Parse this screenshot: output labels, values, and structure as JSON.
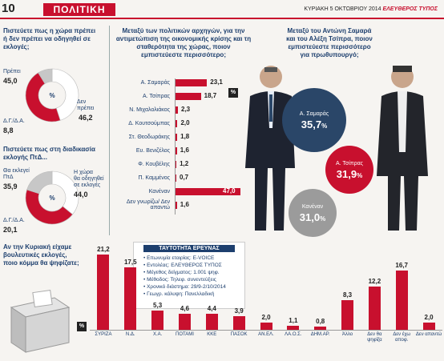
{
  "header": {
    "page_number": "10",
    "section": "ΠΟΛΙΤΙΚΗ",
    "date": "ΚΥΡΙΑΚΗ 5 ΟΚΤΩΒΡΙΟΥ 2014",
    "paper": "ΕΛΕΥΘΕΡΟΣ ΤΥΠΟΣ"
  },
  "chart_data": [
    {
      "type": "pie",
      "title": "Πιστεύετε πως η χώρα πρέπει ή δεν πρέπει να οδηγηθεί σε εκλογές;",
      "center_label": "%",
      "slices": [
        {
          "label": "Πρέπει",
          "value": 45.0,
          "value_text": "45,0",
          "color": "#ffffff"
        },
        {
          "label": "Δεν πρέπει",
          "value": 46.2,
          "value_text": "46,2",
          "color": "#c8102e"
        },
        {
          "label": "Δ.Γ./Δ.Α.",
          "value": 8.8,
          "value_text": "8,8",
          "color": "#c7c7c7"
        }
      ]
    },
    {
      "type": "pie",
      "title": "Πιστεύετε πως στη διαδικασία εκλογής ΠτΔ...",
      "center_label": "%",
      "slices": [
        {
          "label_lines": [
            "Θα εκλεγεί",
            "ΠτΔ"
          ],
          "value": 35.9,
          "value_text": "35,9",
          "color": "#ffffff"
        },
        {
          "label_lines": [
            "Η χώρα",
            "θα οδηγηθεί",
            "σε εκλογές"
          ],
          "value": 44.0,
          "value_text": "44,0",
          "color": "#c8102e"
        },
        {
          "label_lines": [
            "Δ.Γ./Δ.Α."
          ],
          "value": 20.1,
          "value_text": "20,1",
          "color": "#c7c7c7"
        }
      ]
    },
    {
      "type": "bar",
      "orientation": "horizontal",
      "title": "Μεταξύ των πολιτικών αρχηγών, για την αντιμετώπιση της οικονομικής κρίσης και τη σταθερότητα της χώρας, ποιον εμπιστεύεστε περισσότερο;",
      "unit_badge": "%",
      "categories": [
        "Α. Σαμαράς",
        "Α. Τσίπρας",
        "Ν. Μιχαλολιάκος",
        "Δ. Κουτσούμπας",
        "Στ. Θεοδωράκης",
        "Ευ. Βενιζέλος",
        "Φ. Κουβέλης",
        "Π. Καμμένος",
        "Κανέναν",
        "Δεν γνωρίζω/ Δεν απαντώ"
      ],
      "values": [
        23.1,
        18.7,
        2.3,
        2.0,
        1.8,
        1.6,
        1.2,
        0.7,
        47.0,
        1.6
      ],
      "value_texts": [
        "23,1",
        "18,7",
        "2,3",
        "2,0",
        "1,8",
        "1,6",
        "1,2",
        "0,7",
        "47,0",
        "1,6"
      ],
      "xlim": [
        0,
        47
      ]
    },
    {
      "type": "bubble",
      "title": "Μεταξύ του Αντώνη Σαμαρά και του Αλέξη Τσίπρα, ποιον εμπιστεύεστε περισσότερο για πρωθυπουργό;",
      "items": [
        {
          "label": "Α. Σαμαράς",
          "value": 35.7,
          "value_text": "35,7",
          "unit": "%",
          "color": "#2a4668"
        },
        {
          "label": "Α. Τσίπρας",
          "value": 31.9,
          "value_text": "31,9",
          "unit": "%",
          "color": "#c8102e"
        },
        {
          "label": "Κανέναν",
          "value": 31.0,
          "value_text": "31,0",
          "unit": "%",
          "color": "#9b9b9b"
        }
      ]
    },
    {
      "type": "bar",
      "title": "Αν την Κυριακή είχαμε βουλευτικές εκλογές, ποιο κόμμα θα ψηφίζατε;",
      "unit_badge": "%",
      "categories": [
        "ΣΥΡΙΖΑ",
        "Ν.Δ.",
        "Χ.Α.",
        "ΠΟΤΑΜΙ",
        "ΚΚΕ",
        "ΠΑΣΟΚ",
        "ΑΝ.ΕΛ.",
        "ΛΑ.Ο.Σ.",
        "ΔΗΜ.ΑΡ.",
        "Άλλο",
        "Δεν θα ψηφίζα",
        "Δεν έχω αποφ.",
        "Δεν απαντώ"
      ],
      "values": [
        21.2,
        17.5,
        5.3,
        4.6,
        4.4,
        3.9,
        2.0,
        1.1,
        0.8,
        8.3,
        12.2,
        16.7,
        2.0
      ],
      "value_texts": [
        "21,2",
        "17,5",
        "5,3",
        "4,6",
        "4,4",
        "3,9",
        "2,0",
        "1,1",
        "0,8",
        "8,3",
        "12,2",
        "16,7",
        "2,0"
      ],
      "ylim": [
        0,
        22
      ]
    }
  ],
  "survey_box": {
    "title": "ΤΑΥΤΟΤΗΤΑ ΕΡΕΥΝΑΣ",
    "lines": [
      "Επωνυμία εταιρίας: E-VOICE",
      "Εντολέας: ΕΛΕΥΘΕΡΟΣ ΤΥΠΟΣ",
      "Μέγεθος δείγματος: 1.001 ψηφ.",
      "Μέθοδος: Τηλεφ. συνεντεύξεις",
      "Χρονικό διάστημα: 29/9-2/10/2014",
      "Γεωγρ. κάλυψη: Πανελλαδική"
    ]
  },
  "colors": {
    "accent": "#c8102e",
    "navy": "#1d3f6e",
    "grey": "#c7c7c7"
  }
}
